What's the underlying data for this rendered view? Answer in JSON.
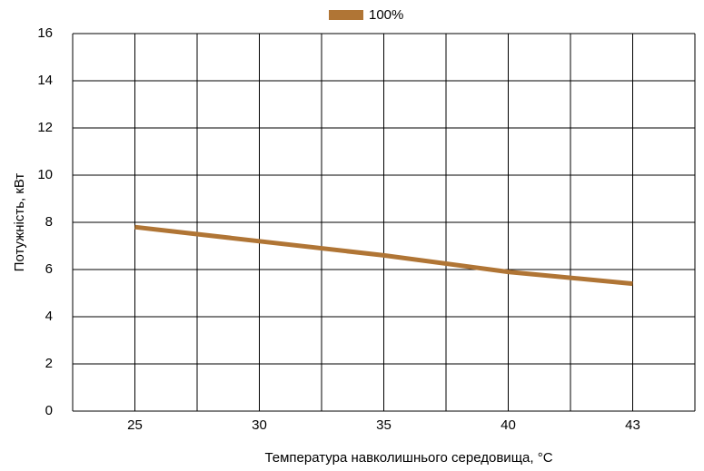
{
  "chart_data": {
    "type": "line",
    "x_label": "Температура навколишнього середовища, °C",
    "y_label": "Потужність, кВт",
    "categories": [
      "25",
      "30",
      "35",
      "40",
      "43"
    ],
    "series": [
      {
        "name": "100%",
        "color": "#b07535",
        "values": [
          7.8,
          7.2,
          6.6,
          5.9,
          5.4
        ]
      }
    ],
    "ylim": [
      0,
      16
    ],
    "yticks": [
      0,
      2,
      4,
      6,
      8,
      10,
      12,
      14,
      16
    ],
    "grid": true,
    "legend": "top"
  }
}
